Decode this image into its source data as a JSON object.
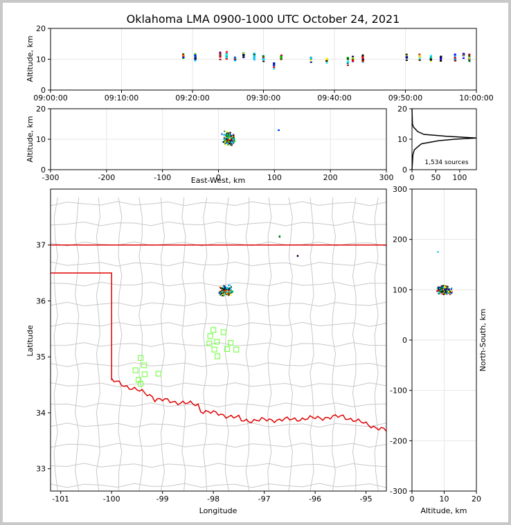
{
  "title": "Oklahoma LMA 0900-1000 UTC October 24, 2021",
  "chart_data": [
    {
      "id": "time-height",
      "type": "scatter",
      "xlabel": "",
      "ylabel": "Altitude, km",
      "xticks": [
        "09:00:00",
        "09:10:00",
        "09:20:00",
        "09:30:00",
        "09:40:00",
        "09:50:00",
        "10:00:00"
      ],
      "xlim": [
        0,
        60
      ],
      "ylim": [
        0,
        20
      ],
      "yticks": [
        0,
        10,
        20
      ],
      "x_units": "minutes after 09:00:00 UTC",
      "clusters": [
        {
          "x": 18.7,
          "y": 11
        },
        {
          "x": 20.4,
          "y": 10.5
        },
        {
          "x": 23.9,
          "y": 11
        },
        {
          "x": 24.8,
          "y": 11.3
        },
        {
          "x": 26.0,
          "y": 10.0
        },
        {
          "x": 27.2,
          "y": 11.5
        },
        {
          "x": 28.7,
          "y": 11.0
        },
        {
          "x": 30.0,
          "y": 10.5
        },
        {
          "x": 31.5,
          "y": 8.0
        },
        {
          "x": 32.5,
          "y": 10.5
        },
        {
          "x": 36.7,
          "y": 10.0
        },
        {
          "x": 38.9,
          "y": 10.2
        },
        {
          "x": 41.9,
          "y": 9.5
        },
        {
          "x": 42.6,
          "y": 10.2
        },
        {
          "x": 44.0,
          "y": 10.0
        },
        {
          "x": 50.2,
          "y": 10.8
        },
        {
          "x": 52.0,
          "y": 10.8
        },
        {
          "x": 53.6,
          "y": 10.3
        },
        {
          "x": 55.0,
          "y": 10.3
        },
        {
          "x": 57.0,
          "y": 10.5
        },
        {
          "x": 58.2,
          "y": 11.5
        },
        {
          "x": 59.0,
          "y": 10.5
        }
      ]
    },
    {
      "id": "ew-height",
      "type": "scatter",
      "xlabel": "East-West, km",
      "ylabel": "Altitude, km",
      "xlim": [
        -300,
        300
      ],
      "ylim": [
        0,
        20
      ],
      "xticks": [
        -300,
        -200,
        -100,
        0,
        100,
        200,
        300
      ],
      "yticks": [
        0,
        10,
        20
      ],
      "clusters": [
        {
          "x": 18,
          "y": 10,
          "spread_x": 14,
          "spread_y": 3
        },
        {
          "x": 108,
          "y": 13,
          "spread_x": 2,
          "spread_y": 0.5
        }
      ]
    },
    {
      "id": "altitude-histogram",
      "type": "line",
      "xlim": [
        0,
        135
      ],
      "ylim": [
        0,
        20
      ],
      "xticks": [
        0,
        50,
        100
      ],
      "yticks": [
        0,
        10,
        20
      ],
      "annotation": "1,534 sources",
      "profile": [
        {
          "y": 0,
          "x": 0
        },
        {
          "y": 5,
          "x": 2
        },
        {
          "y": 6.5,
          "x": 5
        },
        {
          "y": 7.5,
          "x": 12
        },
        {
          "y": 8.5,
          "x": 20
        },
        {
          "y": 9.5,
          "x": 55
        },
        {
          "y": 10.0,
          "x": 90
        },
        {
          "y": 10.4,
          "x": 135
        },
        {
          "y": 11.0,
          "x": 70
        },
        {
          "y": 11.6,
          "x": 25
        },
        {
          "y": 12.5,
          "x": 12
        },
        {
          "y": 14,
          "x": 3
        },
        {
          "y": 15,
          "x": 1
        },
        {
          "y": 20,
          "x": 0
        }
      ]
    },
    {
      "id": "plan-view",
      "type": "scatter",
      "xlabel": "Longitude",
      "ylabel": "Latitude",
      "xlim": [
        -101.2,
        -94.6
      ],
      "ylim": [
        32.6,
        38
      ],
      "xticks": [
        -101,
        -100,
        -99,
        -98,
        -97,
        -96,
        -95
      ],
      "yticks": [
        33,
        34,
        35,
        36,
        37
      ],
      "clusters": [
        {
          "lon": -97.75,
          "lat": 36.18,
          "spread_lon": 0.18,
          "spread_lat": 0.12
        },
        {
          "lon": -96.7,
          "lat": 37.15,
          "spread_lon": 0.02,
          "spread_lat": 0.02
        },
        {
          "lon": -96.35,
          "lat": 36.8,
          "spread_lon": 0.03,
          "spread_lat": 0.02
        }
      ],
      "stations": [
        {
          "lon": -98.0,
          "lat": 35.48
        },
        {
          "lon": -97.8,
          "lat": 35.44
        },
        {
          "lon": -98.06,
          "lat": 35.37
        },
        {
          "lon": -97.93,
          "lat": 35.27
        },
        {
          "lon": -98.08,
          "lat": 35.24
        },
        {
          "lon": -97.66,
          "lat": 35.25
        },
        {
          "lon": -97.73,
          "lat": 35.14
        },
        {
          "lon": -97.98,
          "lat": 35.13
        },
        {
          "lon": -97.55,
          "lat": 35.13
        },
        {
          "lon": -97.92,
          "lat": 35.01
        },
        {
          "lon": -99.43,
          "lat": 34.98
        },
        {
          "lon": -99.36,
          "lat": 34.85
        },
        {
          "lon": -99.53,
          "lat": 34.76
        },
        {
          "lon": -99.35,
          "lat": 34.69
        },
        {
          "lon": -99.08,
          "lat": 34.7
        },
        {
          "lon": -99.47,
          "lat": 34.59
        },
        {
          "lon": -99.43,
          "lat": 34.52
        }
      ]
    },
    {
      "id": "ns-height",
      "type": "scatter",
      "xlabel": "Altitude, km",
      "ylabel": "North-South, km",
      "xlim": [
        0,
        20
      ],
      "ylim": [
        -300,
        300
      ],
      "xticks": [
        0,
        10,
        20
      ],
      "yticks": [
        -300,
        -200,
        -100,
        0,
        100,
        200,
        300
      ],
      "clusters": [
        {
          "x": 10,
          "y": 100,
          "spread_x": 3,
          "spread_y": 12
        },
        {
          "x": 8,
          "y": 175,
          "spread_x": 0.1,
          "spread_y": 1
        }
      ]
    }
  ]
}
